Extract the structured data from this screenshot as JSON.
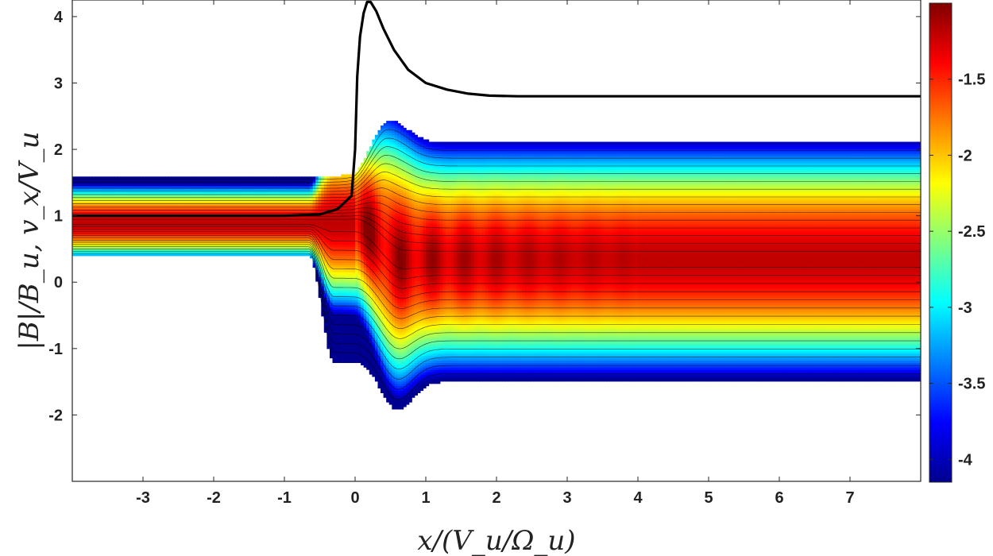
{
  "chart_data": {
    "type": "heatmap",
    "title": "",
    "xlabel": "x/(V_u/Ω_u)",
    "ylabel": "|B|/B_u, v_x/V_u",
    "xlim": [
      -4,
      8
    ],
    "ylim": [
      -3,
      4.25
    ],
    "xticks": [
      -3,
      -2,
      -1,
      0,
      1,
      2,
      3,
      4,
      5,
      6,
      7
    ],
    "yticks": [
      -2,
      -1,
      0,
      1,
      2,
      3,
      4
    ],
    "grid": false,
    "colorbar": {
      "range": [
        -4.15,
        -1.0
      ],
      "ticks": [
        -4,
        -3.5,
        -3,
        -2.5,
        -2,
        -1.5
      ],
      "colormap": "jet"
    },
    "density_envelope": {
      "upstream": {
        "x_range": [
          -4,
          -0.6
        ],
        "v_upper": 1.6,
        "v_lower": 0.4,
        "v_core": 0.9
      },
      "downstream": {
        "x_range": [
          0.6,
          8
        ],
        "v_upper": 2.1,
        "v_lower": -1.5,
        "v_core": 0.35
      },
      "overshoot_upper_peak": [
        0.5,
        2.25
      ],
      "overshoot_lower_peak": [
        0.6,
        -1.85
      ]
    },
    "series": [
      {
        "color": "#000000",
        "x": [
          -4,
          -1.0,
          -0.5,
          -0.25,
          -0.05,
          0.0,
          0.03,
          0.07,
          0.12,
          0.17,
          0.22,
          0.3,
          0.4,
          0.55,
          0.75,
          1.0,
          1.3,
          1.6,
          1.9,
          2.3,
          3.0,
          4.0,
          6.0,
          8.0
        ],
        "y": [
          1.0,
          1.0,
          1.02,
          1.1,
          1.3,
          2.0,
          3.1,
          3.7,
          4.05,
          4.22,
          4.22,
          4.08,
          3.82,
          3.5,
          3.2,
          3.0,
          2.9,
          2.84,
          2.81,
          2.8,
          2.8,
          2.8,
          2.8,
          2.8
        ]
      }
    ]
  }
}
